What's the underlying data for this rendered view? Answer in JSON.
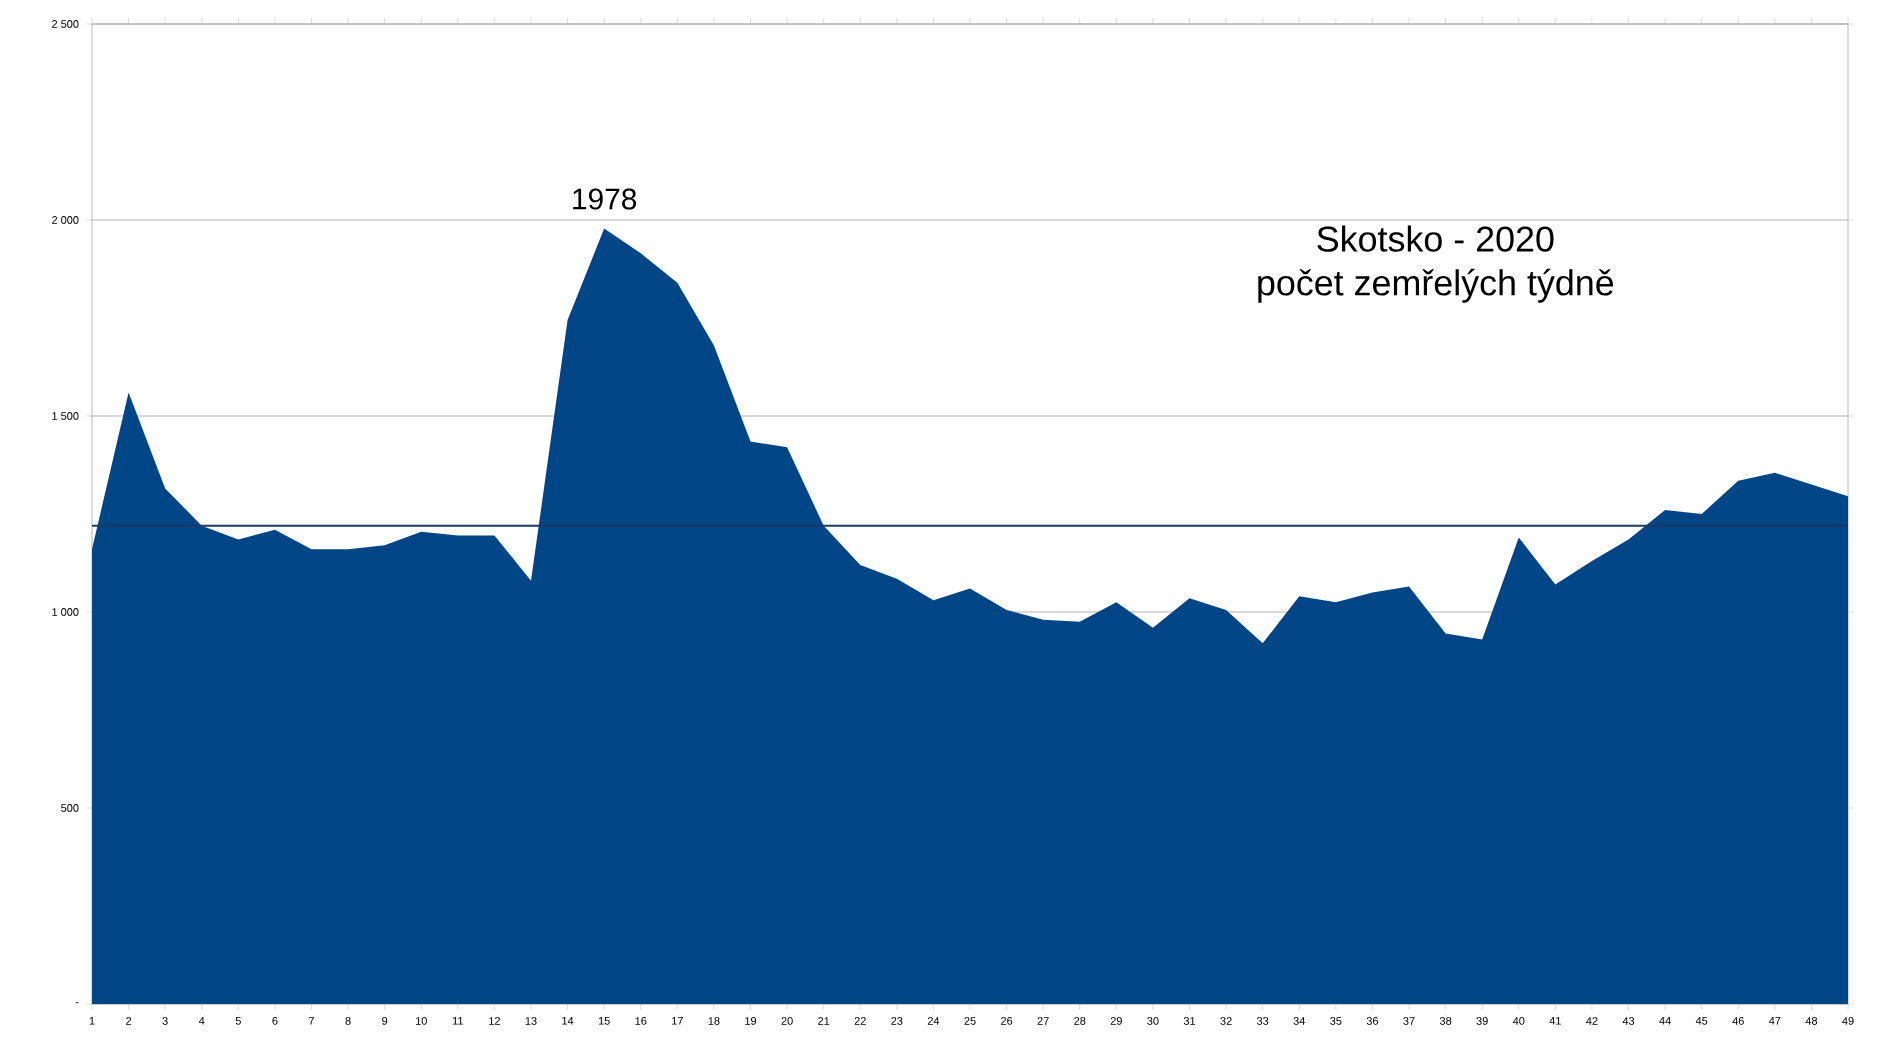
{
  "chart_data": {
    "type": "area",
    "title": "Skotsko - 2020",
    "subtitle": "počet zemřelých týdně",
    "categories": [
      "1",
      "2",
      "3",
      "4",
      "5",
      "6",
      "7",
      "8",
      "9",
      "10",
      "11",
      "12",
      "13",
      "14",
      "15",
      "16",
      "17",
      "18",
      "19",
      "20",
      "21",
      "22",
      "23",
      "24",
      "25",
      "26",
      "27",
      "28",
      "29",
      "30",
      "31",
      "32",
      "33",
      "34",
      "35",
      "36",
      "37",
      "38",
      "39",
      "40",
      "41",
      "42",
      "43",
      "44",
      "45",
      "46",
      "47",
      "48",
      "49"
    ],
    "values": [
      1160,
      1560,
      1315,
      1220,
      1185,
      1210,
      1160,
      1160,
      1170,
      1205,
      1195,
      1195,
      1080,
      1745,
      1978,
      1915,
      1840,
      1680,
      1435,
      1420,
      1220,
      1120,
      1085,
      1030,
      1060,
      1005,
      980,
      975,
      1025,
      960,
      1035,
      1005,
      920,
      1040,
      1025,
      1050,
      1065,
      945,
      930,
      1190,
      1070,
      1130,
      1185,
      1260,
      1250,
      1335,
      1355,
      1325,
      1295
    ],
    "color": "#004586",
    "ylim": [
      0,
      2500
    ],
    "yticks": [
      {
        "value": 0,
        "label": "-"
      },
      500,
      {
        "value": 1000,
        "label": "1 000"
      },
      {
        "value": 1500,
        "label": "1 500"
      },
      {
        "value": 2000,
        "label": "2 000"
      },
      {
        "value": 2500,
        "label": "2 500"
      }
    ],
    "grid": "y",
    "ref_lines": [
      {
        "axis": "y",
        "value": 1220,
        "color": "#1a3a66"
      }
    ],
    "annotations": [
      {
        "text": "1978",
        "x": "15",
        "y": 1978
      }
    ]
  }
}
